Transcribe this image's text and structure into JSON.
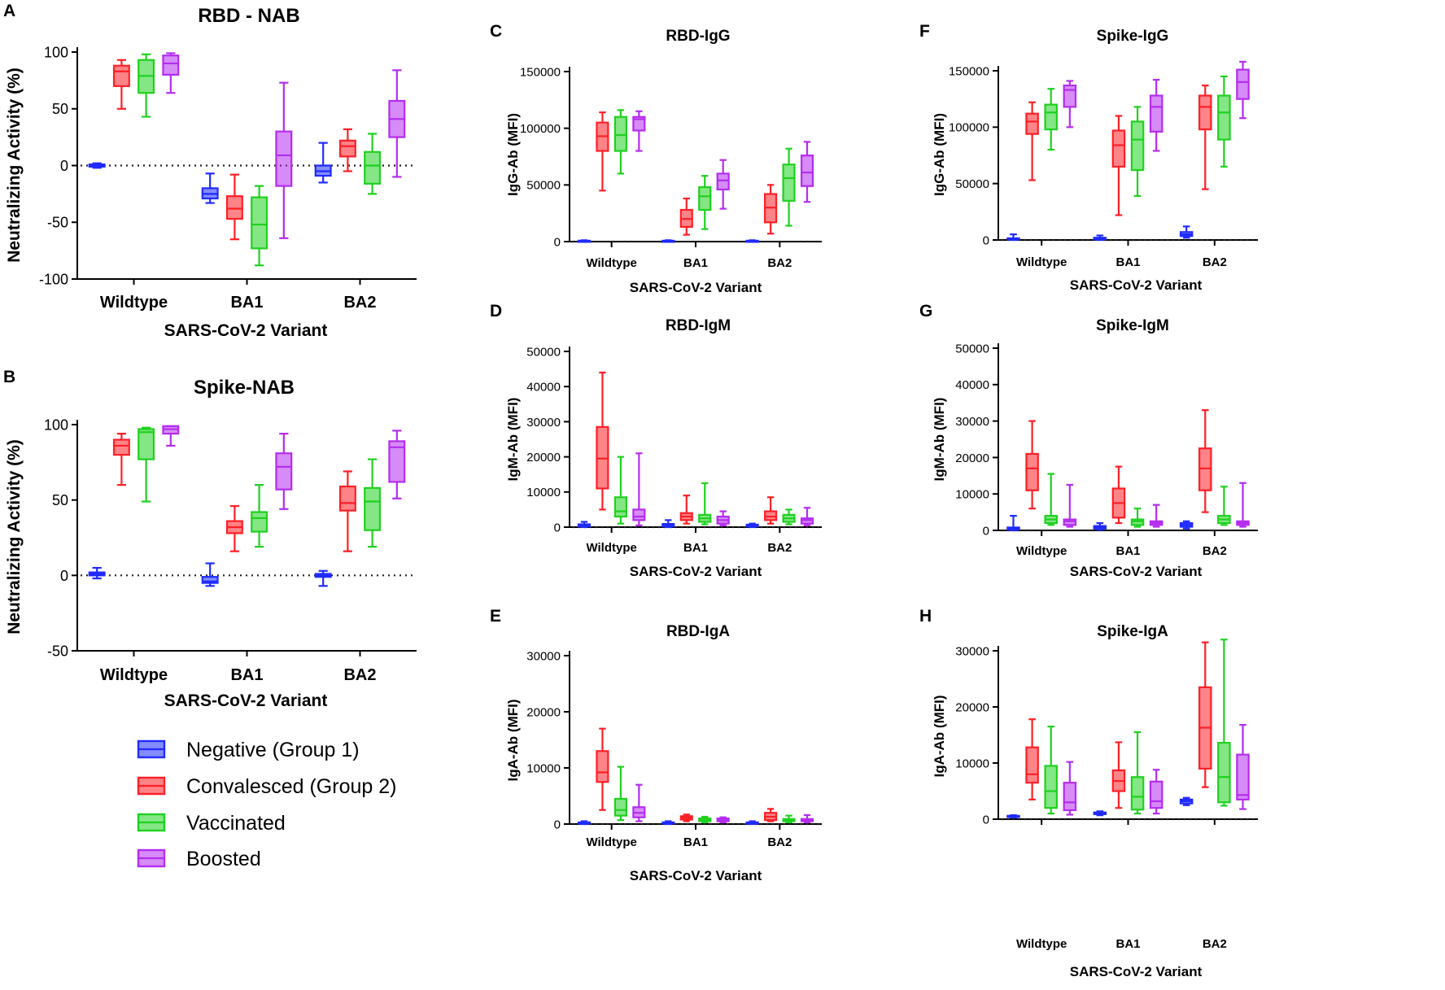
{
  "figure": {
    "legend": [
      {
        "label": "Negative (Group 1)",
        "color": "#1f2bff"
      },
      {
        "label": "Convalesced (Group 2)",
        "color": "#ff1f26"
      },
      {
        "label": "Vaccinated",
        "color": "#1fd11f"
      },
      {
        "label": "Boosted",
        "color": "#b42cf0"
      }
    ],
    "baseline_style": "dotted"
  },
  "chart_data": [
    {
      "panel": "A",
      "type": "box",
      "title": "RBD - NAB",
      "xlabel": "SARS-CoV-2 Variant",
      "ylabel": "Neutralizing Activity (%)",
      "ylim": [
        -100,
        100
      ],
      "yticks": [
        "-100",
        "-50",
        "0",
        "50",
        "100"
      ],
      "categories": [
        "Wildtype",
        "BA1",
        "BA2"
      ],
      "series": [
        {
          "name": "Negative (Group 1)",
          "boxes": [
            [
              -2,
              -1,
              0,
              1,
              2
            ],
            [
              -33,
              -29,
              -25,
              -20,
              -7
            ],
            [
              -15,
              -9,
              -5,
              0,
              20
            ]
          ]
        },
        {
          "name": "Convalesced (Group 2)",
          "boxes": [
            [
              50,
              70,
              83,
              88,
              93
            ],
            [
              -65,
              -47,
              -38,
              -27,
              -8
            ],
            [
              -5,
              8,
              17,
              22,
              32
            ]
          ]
        },
        {
          "name": "Vaccinated",
          "boxes": [
            [
              43,
              64,
              79,
              93,
              98
            ],
            [
              -88,
              -73,
              -52,
              -28,
              -18
            ],
            [
              -25,
              -16,
              0,
              12,
              28
            ]
          ]
        },
        {
          "name": "Boosted",
          "boxes": [
            [
              64,
              80,
              90,
              97,
              99
            ],
            [
              -64,
              -18,
              9,
              30,
              73
            ],
            [
              -10,
              25,
              41,
              57,
              84
            ]
          ]
        }
      ]
    },
    {
      "panel": "B",
      "type": "box",
      "title": "Spike-NAB",
      "xlabel": "SARS-CoV-2 Variant",
      "ylabel": "Neutralizing Activity (%)",
      "ylim": [
        -50,
        100
      ],
      "yticks": [
        "-50",
        "0",
        "50",
        "100"
      ],
      "categories": [
        "Wildtype",
        "BA1",
        "BA2"
      ],
      "series": [
        {
          "name": "Negative (Group 1)",
          "boxes": [
            [
              -2,
              0,
              1,
              2,
              5
            ],
            [
              -7,
              -5,
              -4,
              -1,
              8
            ],
            [
              -7,
              -1,
              0,
              1,
              3
            ]
          ]
        },
        {
          "name": "Convalesced (Group 2)",
          "boxes": [
            [
              60,
              80,
              86,
              90,
              94
            ],
            [
              16,
              28,
              32,
              36,
              46
            ],
            [
              16,
              43,
              48,
              59,
              69
            ]
          ]
        },
        {
          "name": "Vaccinated",
          "boxes": [
            [
              49,
              77,
              95,
              97,
              98
            ],
            [
              19,
              29,
              38,
              42,
              60
            ],
            [
              19,
              30,
              49,
              58,
              77
            ]
          ]
        },
        {
          "name": "Boosted",
          "boxes": [
            [
              86,
              94,
              97,
              99,
              99
            ],
            [
              44,
              57,
              72,
              81,
              94
            ],
            [
              51,
              62,
              85,
              89,
              96
            ]
          ]
        }
      ]
    },
    {
      "panel": "C",
      "type": "box",
      "title": "RBD-IgG",
      "xlabel": "SARS-CoV-2 Variant",
      "ylabel": "IgG-Ab (MFI)",
      "ylim": [
        0,
        150000
      ],
      "yticks": [
        "0",
        "50000",
        "100000",
        "150000"
      ],
      "categories": [
        "Wildtype",
        "BA1",
        "BA2"
      ],
      "series": [
        {
          "name": "Negative (Group 1)",
          "boxes": [
            [
              0,
              0,
              500,
              800,
              1200
            ],
            [
              0,
              0,
              500,
              800,
              1200
            ],
            [
              0,
              0,
              500,
              800,
              1200
            ]
          ]
        },
        {
          "name": "Convalesced (Group 2)",
          "boxes": [
            [
              45000,
              80000,
              93000,
              105000,
              114000
            ],
            [
              6000,
              13000,
              20000,
              28000,
              38000
            ],
            [
              7000,
              17000,
              30000,
              42000,
              50000
            ]
          ]
        },
        {
          "name": "Vaccinated",
          "boxes": [
            [
              60000,
              80000,
              94000,
              110000,
              116000
            ],
            [
              11000,
              28000,
              40000,
              48000,
              58000
            ],
            [
              14000,
              36000,
              56000,
              68000,
              82000
            ]
          ]
        },
        {
          "name": "Boosted",
          "boxes": [
            [
              80000,
              98000,
              108000,
              110000,
              115000
            ],
            [
              29000,
              46000,
              54000,
              60000,
              72000
            ],
            [
              35000,
              49000,
              61000,
              76000,
              88000
            ]
          ]
        }
      ]
    },
    {
      "panel": "D",
      "type": "box",
      "title": "RBD-IgM",
      "xlabel": "SARS-CoV-2 Variant",
      "ylabel": "IgM-Ab (MFI)",
      "ylim": [
        0,
        50000
      ],
      "yticks": [
        "0",
        "10000",
        "20000",
        "30000",
        "40000",
        "50000"
      ],
      "categories": [
        "Wildtype",
        "BA1",
        "BA2"
      ],
      "series": [
        {
          "name": "Negative (Group 1)",
          "boxes": [
            [
              0,
              200,
              500,
              800,
              1500
            ],
            [
              0,
              200,
              600,
              900,
              2000
            ],
            [
              0,
              200,
              500,
              700,
              1000
            ]
          ]
        },
        {
          "name": "Convalesced (Group 2)",
          "boxes": [
            [
              5000,
              11000,
              19500,
              28500,
              44000
            ],
            [
              1000,
              2000,
              3000,
              4000,
              9000
            ],
            [
              1000,
              2000,
              3000,
              4500,
              8500
            ]
          ]
        },
        {
          "name": "Vaccinated",
          "boxes": [
            [
              1000,
              3000,
              4500,
              8500,
              20000
            ],
            [
              800,
              1500,
              2500,
              3500,
              12500
            ],
            [
              800,
              1500,
              2500,
              3500,
              5000
            ]
          ]
        },
        {
          "name": "Boosted",
          "boxes": [
            [
              500,
              2000,
              3000,
              5000,
              21000
            ],
            [
              500,
              1000,
              2000,
              3000,
              4500
            ],
            [
              500,
              1000,
              2000,
              2500,
              5500
            ]
          ]
        }
      ]
    },
    {
      "panel": "E",
      "type": "box",
      "title": "RBD-IgA",
      "xlabel": "SARS-CoV-2 Variant",
      "ylabel": "IgA-Ab (MFI)",
      "ylim": [
        0,
        30000
      ],
      "yticks": [
        "0",
        "10000",
        "20000",
        "30000"
      ],
      "categories": [
        "Wildtype",
        "BA1",
        "BA2"
      ],
      "series": [
        {
          "name": "Negative (Group 1)",
          "boxes": [
            [
              0,
              100,
              200,
              300,
              500
            ],
            [
              0,
              100,
              200,
              300,
              500
            ],
            [
              0,
              100,
              200,
              300,
              500
            ]
          ]
        },
        {
          "name": "Convalesced (Group 2)",
          "boxes": [
            [
              2500,
              7500,
              9200,
              13000,
              17000
            ],
            [
              500,
              800,
              1100,
              1400,
              1700
            ],
            [
              500,
              700,
              1300,
              2000,
              2700
            ]
          ]
        },
        {
          "name": "Vaccinated",
          "boxes": [
            [
              700,
              1500,
              2500,
              4500,
              10200
            ],
            [
              300,
              500,
              800,
              1000,
              1300
            ],
            [
              300,
              500,
              700,
              900,
              1500
            ]
          ]
        },
        {
          "name": "Boosted",
          "boxes": [
            [
              500,
              1200,
              2000,
              3000,
              7000
            ],
            [
              300,
              500,
              800,
              1000,
              1200
            ],
            [
              300,
              500,
              700,
              900,
              1600
            ]
          ]
        }
      ]
    },
    {
      "panel": "F",
      "type": "box",
      "title": "Spike-IgG",
      "xlabel": "SARS-CoV-2 Variant",
      "ylabel": "IgG-Ab (MFI)",
      "ylim": [
        0,
        150000
      ],
      "yticks": [
        "0",
        "50000",
        "100000",
        "150000"
      ],
      "categories": [
        "Wildtype",
        "BA1",
        "BA2"
      ],
      "series": [
        {
          "name": "Negative (Group 1)",
          "boxes": [
            [
              0,
              500,
              1000,
              1500,
              5000
            ],
            [
              0,
              500,
              1000,
              2000,
              4000
            ],
            [
              2000,
              3500,
              5000,
              7000,
              12000
            ]
          ]
        },
        {
          "name": "Convalesced (Group 2)",
          "boxes": [
            [
              53000,
              94000,
              105000,
              112000,
              122000
            ],
            [
              22000,
              65000,
              84000,
              97000,
              110000
            ],
            [
              45000,
              98000,
              118000,
              128000,
              137000
            ]
          ]
        },
        {
          "name": "Vaccinated",
          "boxes": [
            [
              80000,
              98000,
              113000,
              120000,
              134000
            ],
            [
              39000,
              62000,
              89000,
              105000,
              118000
            ],
            [
              65000,
              89000,
              113000,
              128000,
              145000
            ]
          ]
        },
        {
          "name": "Boosted",
          "boxes": [
            [
              100000,
              118000,
              133000,
              137000,
              141000
            ],
            [
              79000,
              96000,
              118000,
              128000,
              142000
            ],
            [
              108000,
              125000,
              140000,
              151000,
              158000
            ]
          ]
        }
      ]
    },
    {
      "panel": "G",
      "type": "box",
      "title": "Spike-IgM",
      "xlabel": "SARS-CoV-2 Variant",
      "ylabel": "IgM-Ab (MFI)",
      "ylim": [
        0,
        50000
      ],
      "yticks": [
        "0",
        "10000",
        "20000",
        "30000",
        "40000",
        "50000"
      ],
      "categories": [
        "Wildtype",
        "BA1",
        "BA2"
      ],
      "series": [
        {
          "name": "Negative (Group 1)",
          "boxes": [
            [
              0,
              200,
              500,
              800,
              4000
            ],
            [
              200,
              500,
              800,
              1200,
              2000
            ],
            [
              500,
              1000,
              1500,
              2000,
              2500
            ]
          ]
        },
        {
          "name": "Convalesced (Group 2)",
          "boxes": [
            [
              6000,
              11000,
              17000,
              21000,
              30000
            ],
            [
              2000,
              3500,
              7500,
              11500,
              17500
            ],
            [
              5000,
              11000,
              17000,
              22500,
              33000
            ]
          ]
        },
        {
          "name": "Vaccinated",
          "boxes": [
            [
              1500,
              2000,
              3000,
              4000,
              15500
            ],
            [
              1000,
              1500,
              2500,
              3000,
              6000
            ],
            [
              1500,
              2000,
              3000,
              4000,
              12000
            ]
          ]
        },
        {
          "name": "Boosted",
          "boxes": [
            [
              1000,
              1500,
              2500,
              3000,
              12500
            ],
            [
              1000,
              1500,
              2000,
              2500,
              7000
            ],
            [
              1000,
              1500,
              2000,
              2500,
              13000
            ]
          ]
        }
      ]
    },
    {
      "panel": "H",
      "type": "box",
      "title": "Spike-IgA",
      "xlabel": "SARS-CoV-2 Variant",
      "ylabel": "IgA-Ab (MFI)",
      "ylim": [
        0,
        30000
      ],
      "yticks": [
        "0",
        "10000",
        "20000",
        "30000"
      ],
      "categories": [
        "Wildtype",
        "BA1",
        "BA2"
      ],
      "series": [
        {
          "name": "Negative (Group 1)",
          "boxes": [
            [
              300,
              400,
              500,
              600,
              700
            ],
            [
              700,
              900,
              1000,
              1200,
              1400
            ],
            [
              2500,
              2800,
              3200,
              3500,
              3800
            ]
          ]
        },
        {
          "name": "Convalesced (Group 2)",
          "boxes": [
            [
              3500,
              6500,
              8000,
              12800,
              17800
            ],
            [
              2000,
              5000,
              6800,
              8700,
              13700
            ],
            [
              5700,
              9000,
              16300,
              23500,
              31500
            ]
          ]
        },
        {
          "name": "Vaccinated",
          "boxes": [
            [
              1000,
              2000,
              5000,
              9500,
              16500
            ],
            [
              1000,
              1700,
              4000,
              7500,
              15500
            ],
            [
              2400,
              3000,
              7500,
              13600,
              32000
            ]
          ]
        },
        {
          "name": "Boosted",
          "boxes": [
            [
              800,
              1600,
              3000,
              6500,
              10200
            ],
            [
              1000,
              2000,
              3200,
              6700,
              8800
            ],
            [
              1800,
              3500,
              4300,
              11500,
              16800
            ]
          ]
        }
      ]
    }
  ]
}
